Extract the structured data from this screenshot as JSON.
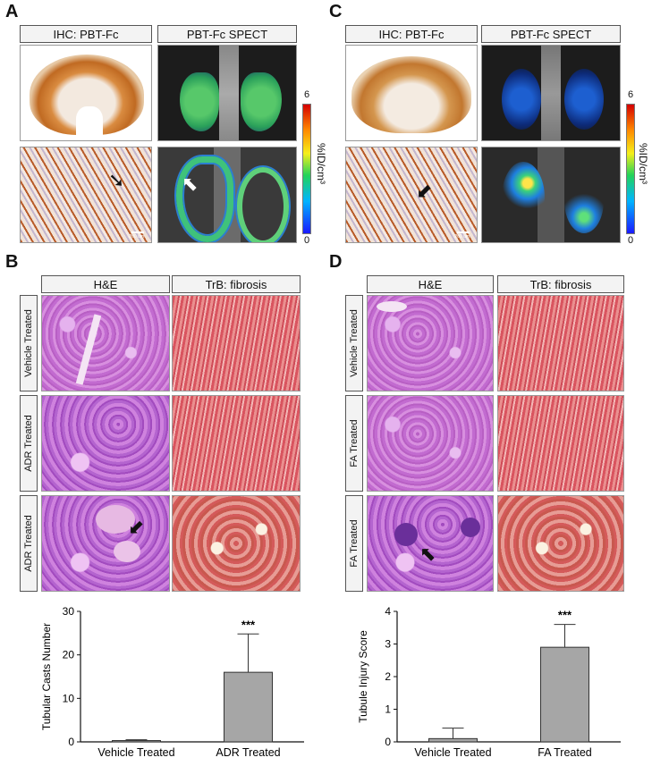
{
  "panels": {
    "A": {
      "letter": "A",
      "header_left": "IHC: PBT-Fc",
      "header_right": "PBT-Fc SPECT",
      "colorbar": {
        "max": "6",
        "min": "0",
        "unit": "%ID/cm³"
      }
    },
    "C": {
      "letter": "C",
      "header_left": "IHC: PBT-Fc",
      "header_right": "PBT-Fc SPECT",
      "colorbar": {
        "max": "6",
        "min": "0",
        "unit": "%ID/cm³"
      }
    },
    "B": {
      "letter": "B",
      "header_left": "H&E",
      "header_right": "TrB: fibrosis",
      "rows": [
        "Vehicle Treated",
        "ADR Treated",
        "ADR Treated"
      ]
    },
    "D": {
      "letter": "D",
      "header_left": "H&E",
      "header_right": "TrB: fibrosis",
      "rows": [
        "Vehicle Treated",
        "FA Treated",
        "FA Treated"
      ]
    }
  },
  "scale_label": "200 um",
  "colors": {
    "bar_fill": "#a6a6a6",
    "bar_edge": "#333333"
  },
  "chart_data": [
    {
      "type": "bar",
      "categories": [
        "Vehicle Treated",
        "ADR Treated"
      ],
      "values": [
        0.3,
        16
      ],
      "errors": [
        0.2,
        8.8
      ],
      "ylabel": "Tubular Casts Number",
      "ylim": [
        0,
        30
      ],
      "yticks": [
        "0",
        "10",
        "20",
        "30"
      ],
      "annotation": "***"
    },
    {
      "type": "bar",
      "categories": [
        "Vehicle Treated",
        "FA Treated"
      ],
      "values": [
        0.1,
        2.9
      ],
      "errors": [
        0.32,
        0.7
      ],
      "ylabel": "Tubule Injury Score",
      "ylim": [
        0,
        4
      ],
      "yticks": [
        "0",
        "1",
        "2",
        "3",
        "4"
      ],
      "annotation": "***"
    }
  ]
}
